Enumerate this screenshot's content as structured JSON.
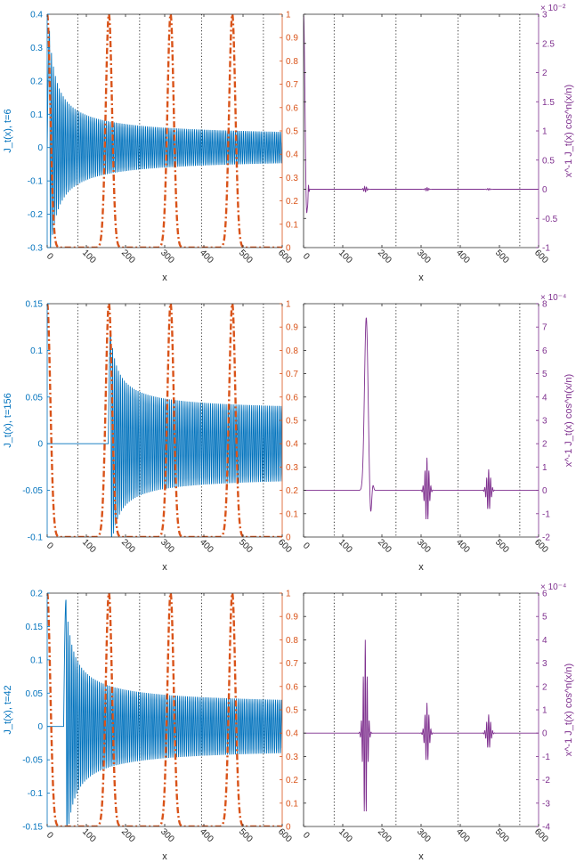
{
  "colors": {
    "blue": "#0072BD",
    "orange": "#D95319",
    "purple": "#7E2F8E",
    "axis": "#262626",
    "grid": "#000000"
  },
  "chart_data": [
    {
      "id": "row1-left",
      "type": "line",
      "xlabel": "x",
      "ylabel": "J_t(x),   t=6",
      "xlim": [
        0,
        600
      ],
      "xticks": [
        "0",
        "100",
        "200",
        "300",
        "400",
        "500",
        "600"
      ],
      "ylim_left": [
        -0.3,
        0.4
      ],
      "yticks_left": [
        "-0.3",
        "-0.2",
        "-0.1",
        "0",
        "0.1",
        "0.2",
        "0.3",
        "0.4"
      ],
      "ylim_right": [
        0,
        1
      ],
      "yticks_right": [
        "0",
        "0.1",
        "0.2",
        "0.3",
        "0.4",
        "0.5",
        "0.6",
        "0.7",
        "0.8",
        "0.9",
        "1"
      ],
      "gridlines_x": [
        78,
        236,
        394,
        552
      ],
      "series": [
        {
          "axis": "left",
          "color": "blue",
          "style": "solid",
          "kind": "osc-decay",
          "onset": 0,
          "peak": 0.35,
          "amp_end": 0.028,
          "period": 5
        },
        {
          "axis": "right",
          "color": "orange",
          "style": "dashdot",
          "kind": "peaks",
          "centers": [
            0,
            157.5,
            315,
            472.5
          ],
          "width": 8
        }
      ]
    },
    {
      "id": "row1-right",
      "type": "line",
      "xlabel": "x",
      "ylabel_right": "x^-1 J_t(x) cos^n(x/n)",
      "xlim": [
        0,
        600
      ],
      "xticks": [
        "0",
        "100",
        "200",
        "300",
        "400",
        "500",
        "600"
      ],
      "ylim": [
        -1,
        3
      ],
      "yticks": [
        "-1",
        "-0.5",
        "0",
        "0.5",
        "1",
        "1.5",
        "2",
        "2.5",
        "3"
      ],
      "exponent": "× 10⁻²",
      "gridlines_x": [
        78,
        236,
        394,
        552
      ],
      "series": [
        {
          "color": "purple",
          "style": "solid",
          "kind": "spike-first",
          "peak": 3.0,
          "dip": -0.55,
          "small": [
            [
              157.5,
              0.05
            ],
            [
              315,
              0.03
            ],
            [
              472.5,
              0.015
            ]
          ]
        }
      ]
    },
    {
      "id": "row2-left",
      "type": "line",
      "xlabel": "x",
      "ylabel": "J_t(x),   t=156",
      "xlim": [
        0,
        600
      ],
      "xticks": [
        "0",
        "100",
        "200",
        "300",
        "400",
        "500",
        "600"
      ],
      "ylim_left": [
        -0.1,
        0.15
      ],
      "yticks_left": [
        "-0.1",
        "-0.05",
        "0",
        "0.05",
        "0.1",
        "0.15"
      ],
      "ylim_right": [
        0,
        1
      ],
      "yticks_right": [
        "0",
        "0.1",
        "0.2",
        "0.3",
        "0.4",
        "0.5",
        "0.6",
        "0.7",
        "0.8",
        "0.9",
        "1"
      ],
      "gridlines_x": [
        78,
        236,
        394,
        552
      ],
      "series": [
        {
          "axis": "left",
          "color": "blue",
          "style": "solid",
          "kind": "osc-decay",
          "onset": 156,
          "peak": 0.12,
          "amp_end": 0.034,
          "period": 5
        },
        {
          "axis": "right",
          "color": "orange",
          "style": "dashdot",
          "kind": "peaks",
          "centers": [
            0,
            157.5,
            315,
            472.5
          ],
          "width": 8
        }
      ]
    },
    {
      "id": "row2-right",
      "type": "line",
      "xlabel": "x",
      "ylabel_right": "x^-1 J_t(x) cos^n(x/n)",
      "xlim": [
        0,
        600
      ],
      "xticks": [
        "0",
        "100",
        "200",
        "300",
        "400",
        "500",
        "600"
      ],
      "ylim": [
        -2,
        8
      ],
      "yticks": [
        "-2",
        "-1",
        "0",
        "1",
        "2",
        "3",
        "4",
        "5",
        "6",
        "7",
        "8"
      ],
      "exponent": "× 10⁻⁴",
      "gridlines_x": [
        78,
        236,
        394,
        552
      ],
      "series": [
        {
          "color": "purple",
          "style": "solid",
          "kind": "spike-at",
          "center": 160,
          "peak": 7.4,
          "dip": -1.2,
          "small": [
            [
              315,
              1.4
            ],
            [
              472.5,
              0.9
            ]
          ]
        }
      ]
    },
    {
      "id": "row3-left",
      "type": "line",
      "xlabel": "x",
      "ylabel": "J_t(x),   t=42",
      "xlim": [
        0,
        600
      ],
      "xticks": [
        "0",
        "100",
        "200",
        "300",
        "400",
        "500",
        "600"
      ],
      "ylim_left": [
        -0.15,
        0.2
      ],
      "yticks_left": [
        "-0.15",
        "-0.1",
        "-0.05",
        "0",
        "0.05",
        "0.1",
        "0.15",
        "0.2"
      ],
      "ylim_right": [
        0,
        1
      ],
      "yticks_right": [
        "0",
        "0.1",
        "0.2",
        "0.3",
        "0.4",
        "0.5",
        "0.6",
        "0.7",
        "0.8",
        "0.9",
        "1"
      ],
      "gridlines_x": [
        78,
        236,
        394,
        552
      ],
      "series": [
        {
          "axis": "left",
          "color": "blue",
          "style": "solid",
          "kind": "osc-decay",
          "onset": 42,
          "peak": 0.19,
          "amp_end": 0.03,
          "period": 5
        },
        {
          "axis": "right",
          "color": "orange",
          "style": "dashdot",
          "kind": "peaks",
          "centers": [
            0,
            157.5,
            315,
            472.5
          ],
          "width": 8
        }
      ]
    },
    {
      "id": "row3-right",
      "type": "line",
      "xlabel": "x",
      "ylabel_right": "x^-1 J_t(x) cos^n(x/n)",
      "xlim": [
        0,
        600
      ],
      "xticks": [
        "0",
        "100",
        "200",
        "300",
        "400",
        "500",
        "600"
      ],
      "ylim": [
        -4,
        6
      ],
      "yticks": [
        "-4",
        "-3",
        "-2",
        "-1",
        "0",
        "1",
        "2",
        "3",
        "4",
        "5",
        "6"
      ],
      "exponent": "× 10⁻⁴",
      "gridlines_x": [
        78,
        236,
        394,
        552
      ],
      "series": [
        {
          "color": "purple",
          "style": "solid",
          "kind": "packets",
          "packets": [
            [
              157.5,
              4.0,
              -3.8
            ],
            [
              315,
              1.3,
              -1.3
            ],
            [
              472.5,
              0.8,
              -0.7
            ]
          ]
        }
      ]
    }
  ]
}
